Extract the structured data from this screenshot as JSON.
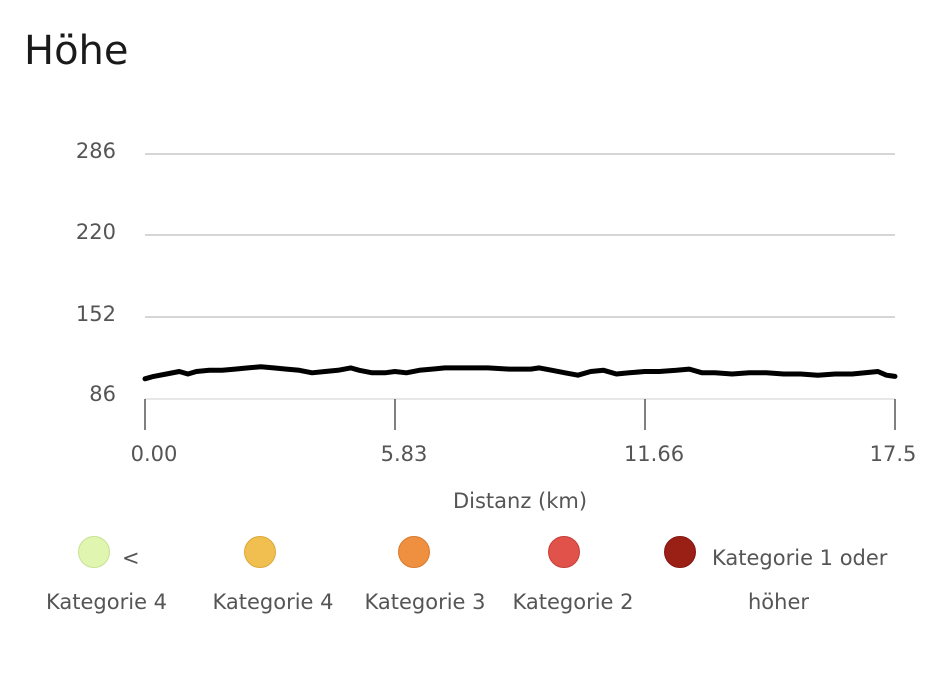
{
  "title": "Höhe",
  "chart_data": {
    "type": "area",
    "title": "Höhe",
    "xlabel": "Distanz (km)",
    "ylabel": "",
    "xlim": [
      0,
      17.5
    ],
    "ylim": [
      86,
      286
    ],
    "x_ticks": [
      "0.00",
      "5.83",
      "11.66",
      "17.5"
    ],
    "y_ticks": [
      "86",
      "152",
      "220",
      "286"
    ],
    "grid": true,
    "line_color": "#000000",
    "series": [
      {
        "x": [
          0,
          0.2,
          0.5,
          0.8,
          1.0,
          1.2,
          1.5,
          1.8,
          2.1,
          2.4,
          2.7,
          3.0,
          3.3,
          3.6,
          3.9,
          4.2,
          4.5,
          4.8,
          5.0,
          5.3,
          5.6,
          5.83,
          6.1,
          6.4,
          6.7,
          7.0,
          7.5,
          8.0,
          8.5,
          9.0,
          9.2,
          9.5,
          9.8,
          10.1,
          10.4,
          10.7,
          11.0,
          11.3,
          11.66,
          12.0,
          12.4,
          12.7,
          13.0,
          13.3,
          13.7,
          14.1,
          14.5,
          14.9,
          15.3,
          15.7,
          16.1,
          16.5,
          16.8,
          17.1,
          17.3,
          17.5
        ],
        "y": [
          101,
          103,
          105,
          107,
          105,
          107,
          108,
          108,
          109,
          110,
          111,
          110,
          109,
          108,
          106,
          107,
          108,
          110,
          108,
          106,
          106,
          107,
          106,
          108,
          109,
          110,
          110,
          110,
          109,
          109,
          110,
          108,
          106,
          104,
          107,
          108,
          105,
          106,
          107,
          107,
          108,
          109,
          106,
          106,
          105,
          106,
          106,
          105,
          105,
          104,
          105,
          105,
          106,
          107,
          104,
          103
        ]
      }
    ]
  },
  "legend": [
    {
      "line1": "<",
      "line2": "Kategorie 4",
      "color": "#dff5b0",
      "border": "#c8e294"
    },
    {
      "line1": "",
      "line2": "Kategorie 4",
      "color": "#f0bf50",
      "border": "#dca93a"
    },
    {
      "line1": "",
      "line2": "Kategorie 3",
      "color": "#ee9040",
      "border": "#d87a2c"
    },
    {
      "line1": "",
      "line2": "Kategorie 2",
      "color": "#e0524a",
      "border": "#c63e38"
    },
    {
      "line1": "Kategorie 1 oder",
      "line2": "höher",
      "color": "#9a2016",
      "border": "#83170f"
    }
  ]
}
